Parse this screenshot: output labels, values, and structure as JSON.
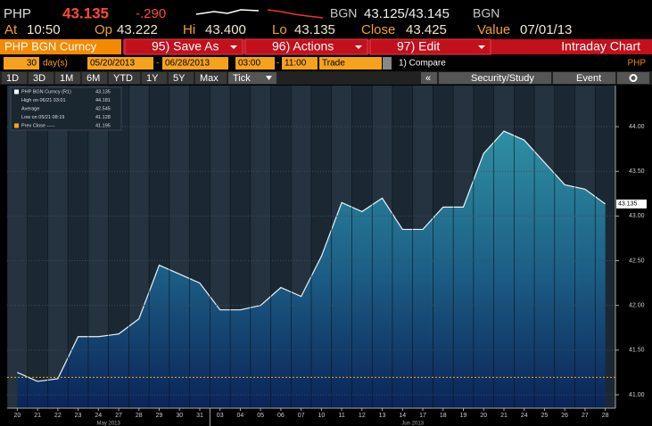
{
  "quote": {
    "ticker": "PHP",
    "last": "43.135",
    "change": "-.290",
    "source": "BGN",
    "bid_ask": "43.125/43.145",
    "fields": [
      {
        "label": "At",
        "value": "10:50"
      },
      {
        "label": "Op",
        "value": "43.222"
      },
      {
        "label": "Hi",
        "value": "43.400"
      },
      {
        "label": "Lo",
        "value": "43.135"
      },
      {
        "label": "Close",
        "value": "43.425"
      },
      {
        "label": "Value",
        "value": "07/01/13"
      }
    ]
  },
  "menu": {
    "security": "PHP BGN Curncy",
    "items": [
      "95) Save As",
      "96) Actions",
      "97) Edit"
    ],
    "title": "Intraday Chart"
  },
  "controls": {
    "period": "30",
    "unit": "day(s)",
    "start": "05/20/2013",
    "dash": "-",
    "end": "06/28/2013",
    "from": "03:00",
    "to": "11:00",
    "event": "Trade",
    "compare": "1) Compare",
    "currency": "PHP"
  },
  "tabs": [
    "1D",
    "3D",
    "1M",
    "6M",
    "YTD",
    "1Y",
    "5Y",
    "Max",
    "Tick"
  ],
  "tools": [
    "«",
    "Security/Study",
    "Event"
  ],
  "chart_data": {
    "type": "area",
    "categories": [
      "20",
      "21",
      "22",
      "23",
      "24",
      "27",
      "28",
      "29",
      "30",
      "31",
      "03",
      "04",
      "05",
      "06",
      "07",
      "10",
      "11",
      "12",
      "13",
      "14",
      "17",
      "18",
      "19",
      "20",
      "21",
      "24",
      "25",
      "26",
      "27",
      "28"
    ],
    "months": [
      {
        "label": "May 2013",
        "start": 0,
        "end": 9
      },
      {
        "label": "Jun 2013",
        "start": 10,
        "end": 29
      }
    ],
    "values": [
      41.25,
      41.15,
      41.18,
      41.65,
      41.65,
      41.68,
      41.85,
      42.45,
      42.35,
      42.25,
      41.95,
      41.95,
      42.0,
      42.2,
      42.1,
      42.55,
      43.15,
      43.05,
      43.2,
      42.85,
      42.85,
      43.1,
      43.1,
      43.7,
      43.95,
      43.85,
      43.6,
      43.35,
      43.3,
      43.135
    ],
    "ylim": [
      40.85,
      44.46
    ],
    "yticks": [
      {
        "value": 41,
        "label": "41.00"
      },
      {
        "value": 41.5,
        "label": "41.50"
      },
      {
        "value": 42,
        "label": "42.00"
      },
      {
        "value": 42.5,
        "label": "42.50"
      },
      {
        "value": 43,
        "label": "43.00"
      },
      {
        "value": 43.5,
        "label": "43.50"
      },
      {
        "value": 44,
        "label": "44.00"
      }
    ],
    "legend": [
      {
        "label": "PHP BGN Curncy (R1)",
        "value": 43.135
      },
      {
        "label": "High on 06/21 03:01",
        "value": 44.181
      },
      {
        "label": "Average",
        "value": 42.545
      },
      {
        "label": "Low on 05/21 08:19",
        "value": 41.128
      },
      {
        "label": "Prev Close -----",
        "value": 41.195
      }
    ]
  }
}
